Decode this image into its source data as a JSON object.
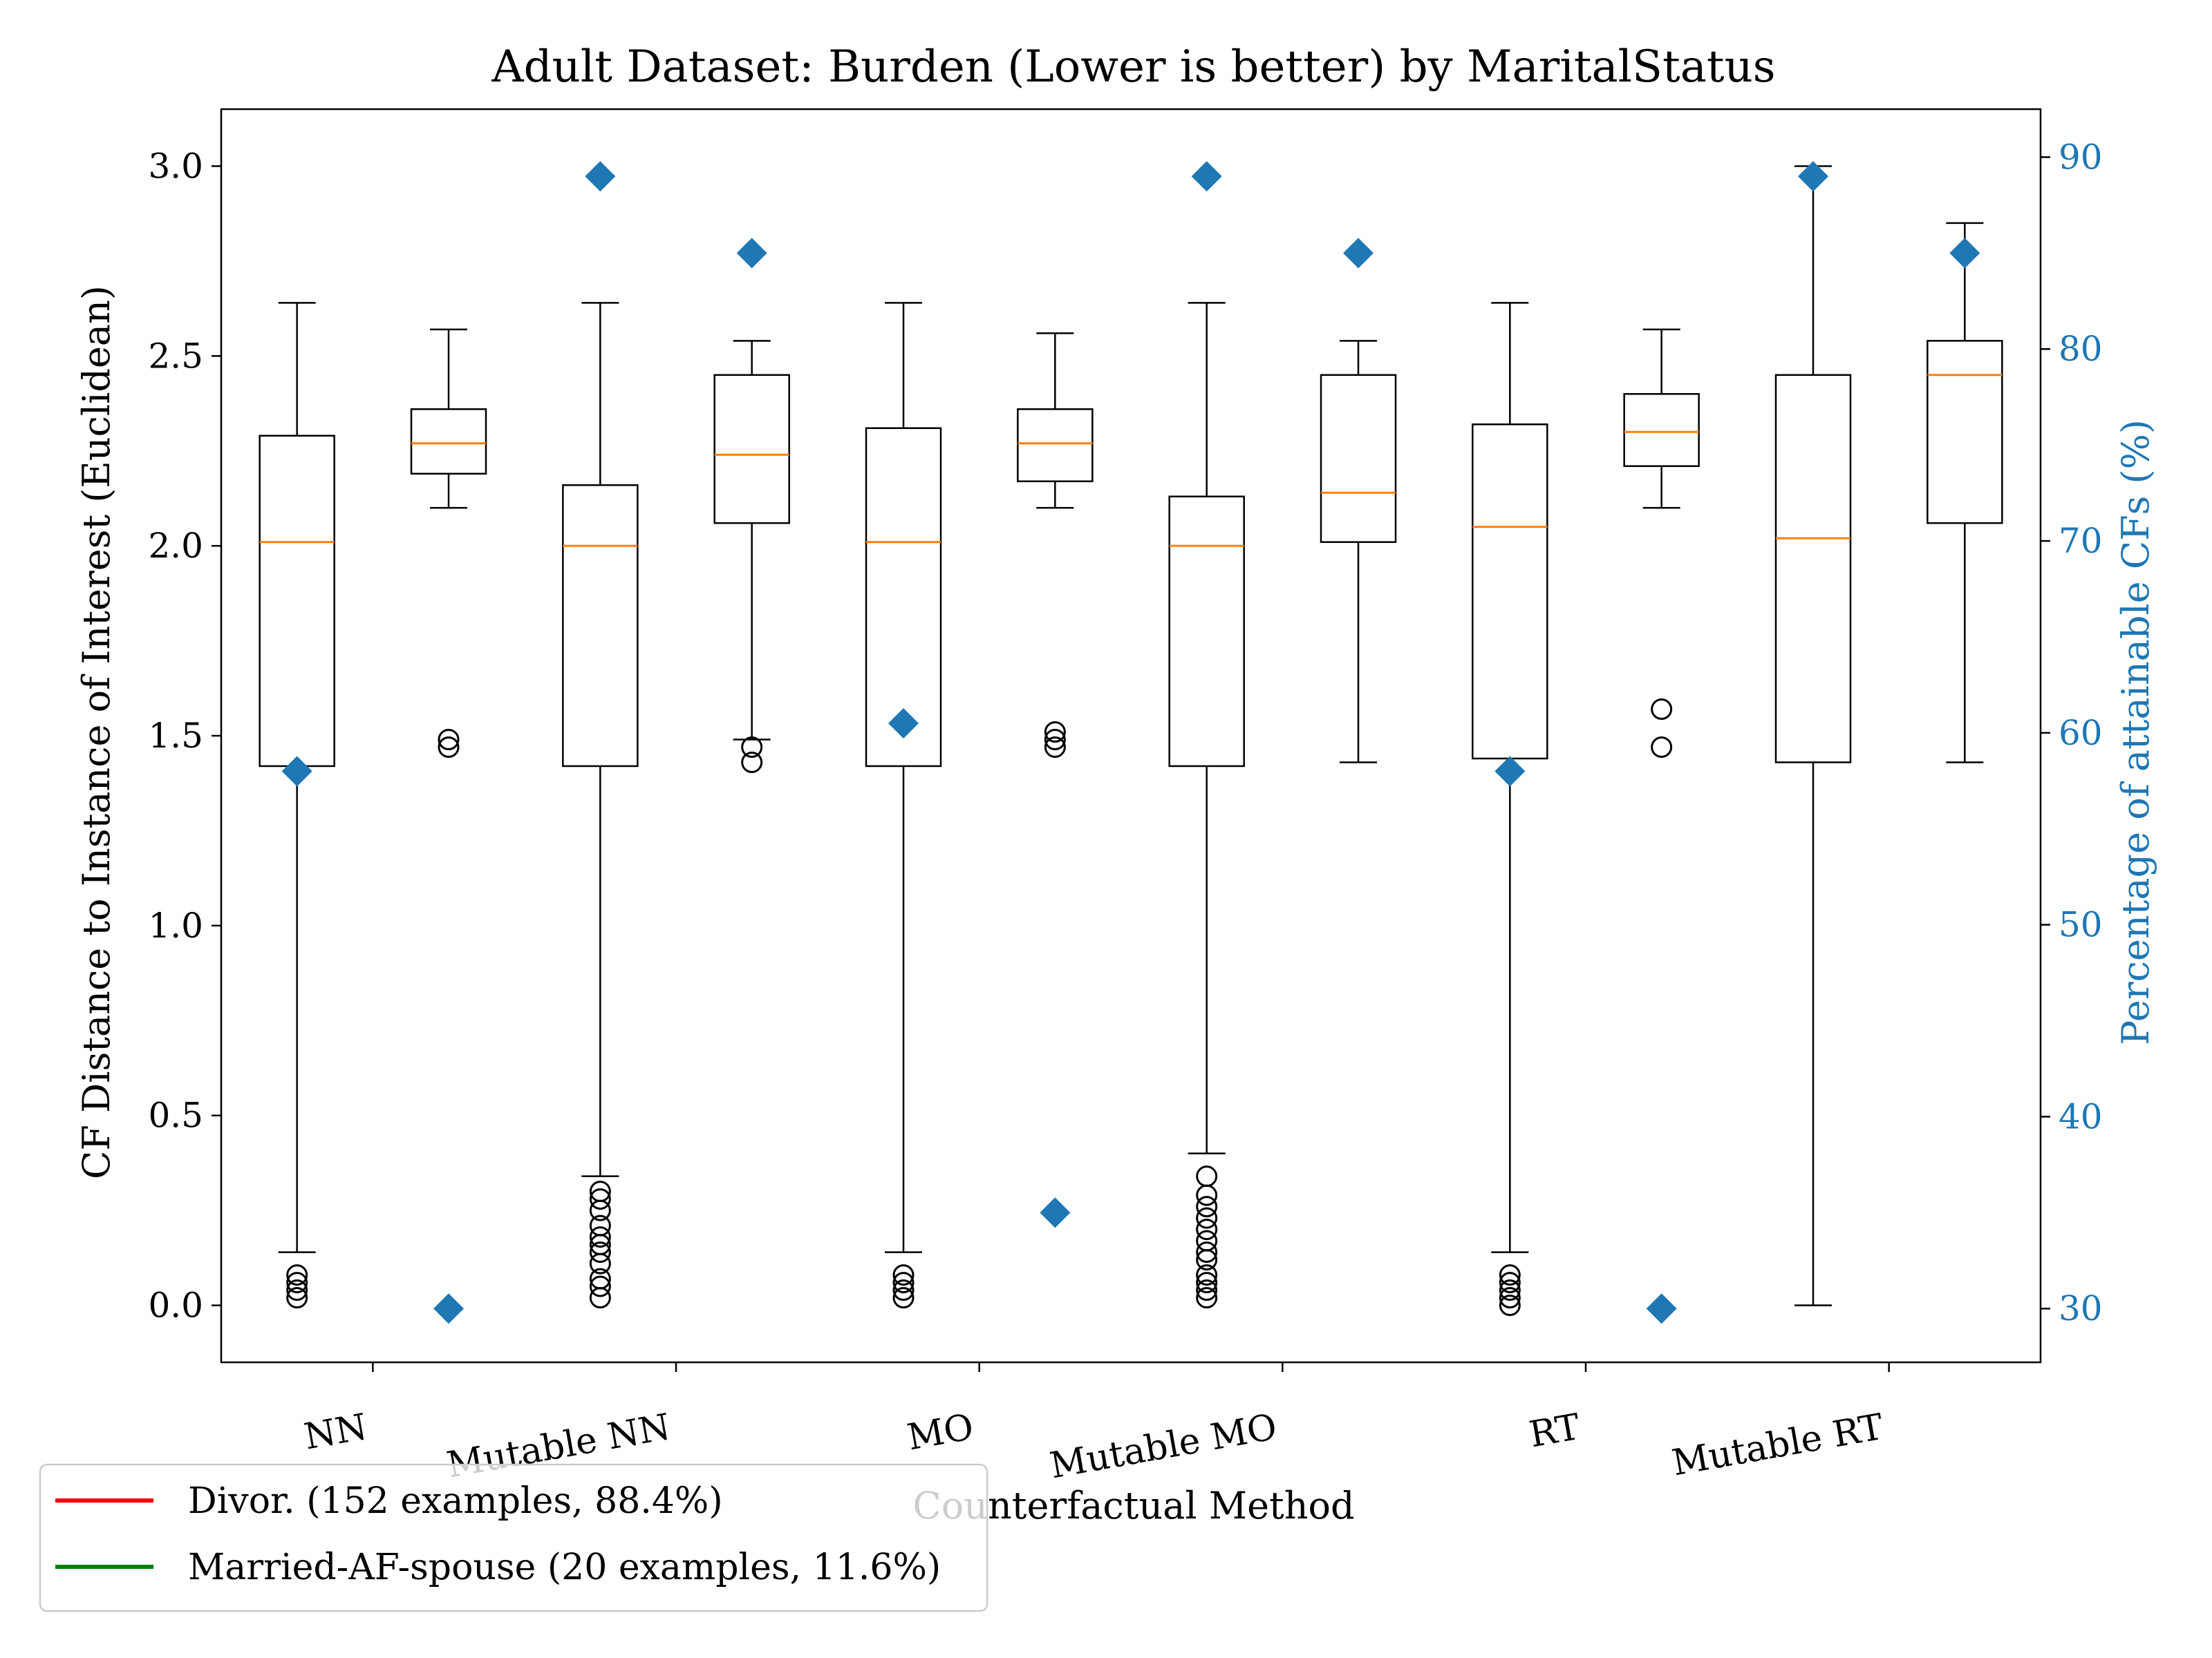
{
  "chart_data": {
    "type": "box",
    "title": "Adult Dataset: Burden (Lower is better) by MaritalStatus",
    "xlabel": "Counterfactual Method",
    "ylabel": "CF Distance to Instance of Interest (Euclidean)",
    "ylabel_right": "Percentage of attainable CFs (%)",
    "ylim": [
      -0.15,
      3.15
    ],
    "ylim_right": [
      27.2,
      92.5
    ],
    "yticks": [
      0.0,
      0.5,
      1.0,
      1.5,
      2.0,
      2.5,
      3.0
    ],
    "yticks_right": [
      30,
      40,
      50,
      60,
      70,
      80,
      90
    ],
    "categories": [
      "NN",
      "Mutable NN",
      "MO",
      "Mutable MO",
      "RT",
      "Mutable RT"
    ],
    "legend": [
      {
        "label": "Divor. (152 examples, 88.4%)",
        "color": "#ff0000"
      },
      {
        "label": "Married-AF-spouse (20 examples, 11.6%)",
        "color": "#008000"
      }
    ],
    "colors": {
      "median": "#ff7f0e",
      "marker": "#1f77b4",
      "box": "#000000"
    },
    "boxes": [
      {
        "category": "NN",
        "group": "Divor.",
        "whislo": 0.14,
        "q1": 1.42,
        "med": 2.01,
        "q3": 2.29,
        "whishi": 2.64,
        "fliers": [
          0.02,
          0.04,
          0.06,
          0.08
        ],
        "pct": 58
      },
      {
        "category": "NN",
        "group": "Married-AF-spouse",
        "whislo": 2.1,
        "q1": 2.19,
        "med": 2.27,
        "q3": 2.36,
        "whishi": 2.57,
        "fliers": [
          1.47,
          1.49
        ],
        "pct": 30
      },
      {
        "category": "Mutable NN",
        "group": "Divor.",
        "whislo": 0.34,
        "q1": 1.42,
        "med": 2.0,
        "q3": 2.16,
        "whishi": 2.64,
        "fliers": [
          0.02,
          0.05,
          0.07,
          0.11,
          0.14,
          0.16,
          0.18,
          0.21,
          0.25,
          0.28,
          0.3
        ],
        "pct": 89
      },
      {
        "category": "Mutable NN",
        "group": "Married-AF-spouse",
        "whislo": 1.49,
        "q1": 2.06,
        "med": 2.24,
        "q3": 2.45,
        "whishi": 2.54,
        "fliers": [
          1.43,
          1.47
        ],
        "pct": 85
      },
      {
        "category": "MO",
        "group": "Divor.",
        "whislo": 0.14,
        "q1": 1.42,
        "med": 2.01,
        "q3": 2.31,
        "whishi": 2.64,
        "fliers": [
          0.02,
          0.04,
          0.06,
          0.08
        ],
        "pct": 60.5
      },
      {
        "category": "MO",
        "group": "Married-AF-spouse",
        "whislo": 2.1,
        "q1": 2.17,
        "med": 2.27,
        "q3": 2.36,
        "whishi": 2.56,
        "fliers": [
          1.47,
          1.49,
          1.51
        ],
        "pct": 35
      },
      {
        "category": "Mutable MO",
        "group": "Divor.",
        "whislo": 0.4,
        "q1": 1.42,
        "med": 2.0,
        "q3": 2.13,
        "whishi": 2.64,
        "fliers": [
          0.02,
          0.04,
          0.06,
          0.08,
          0.12,
          0.14,
          0.17,
          0.2,
          0.23,
          0.26,
          0.29,
          0.34
        ],
        "pct": 89
      },
      {
        "category": "Mutable MO",
        "group": "Married-AF-spouse",
        "whislo": 1.43,
        "q1": 2.01,
        "med": 2.14,
        "q3": 2.45,
        "whishi": 2.54,
        "fliers": [],
        "pct": 85
      },
      {
        "category": "RT",
        "group": "Divor.",
        "whislo": 0.14,
        "q1": 1.44,
        "med": 2.05,
        "q3": 2.32,
        "whishi": 2.64,
        "fliers": [
          0.0,
          0.02,
          0.04,
          0.06,
          0.08
        ],
        "pct": 58
      },
      {
        "category": "RT",
        "group": "Married-AF-spouse",
        "whislo": 2.1,
        "q1": 2.21,
        "med": 2.3,
        "q3": 2.4,
        "whishi": 2.57,
        "fliers": [
          1.47,
          1.57
        ],
        "pct": 30
      },
      {
        "category": "Mutable RT",
        "group": "Divor.",
        "whislo": 0.0,
        "q1": 1.43,
        "med": 2.02,
        "q3": 2.45,
        "whishi": 3.0,
        "fliers": [],
        "pct": 89
      },
      {
        "category": "Mutable RT",
        "group": "Married-AF-spouse",
        "whislo": 1.43,
        "q1": 2.06,
        "med": 2.45,
        "q3": 2.54,
        "whishi": 2.85,
        "fliers": [],
        "pct": 85
      }
    ]
  }
}
